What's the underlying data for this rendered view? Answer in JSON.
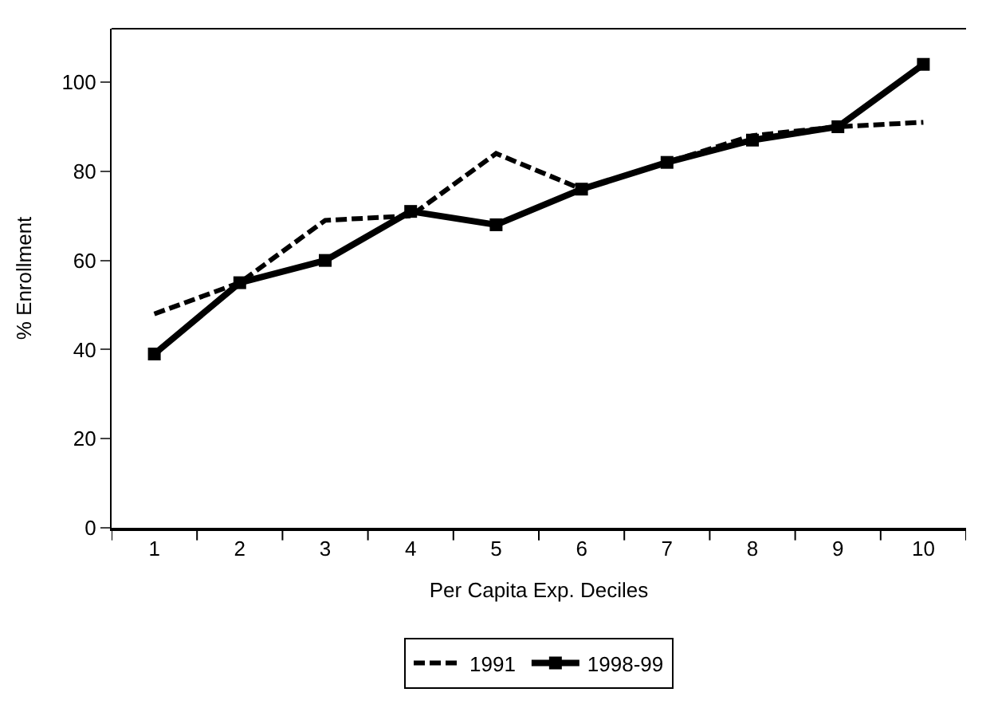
{
  "chart_data": {
    "type": "line",
    "xlabel": "Per Capita Exp. Deciles",
    "ylabel": "% Enrollment",
    "categories": [
      "1",
      "2",
      "3",
      "4",
      "5",
      "6",
      "7",
      "8",
      "9",
      "10"
    ],
    "series": [
      {
        "name": "1991",
        "color": "#000000",
        "line_style": "dashed",
        "marker": "none",
        "values": [
          48,
          55,
          69,
          70,
          84,
          76,
          82,
          88,
          90,
          91
        ]
      },
      {
        "name": "1998-99",
        "color": "#000000",
        "line_style": "solid",
        "marker": "square",
        "values": [
          39,
          55,
          60,
          71,
          68,
          76,
          82,
          87,
          90,
          104
        ]
      }
    ],
    "ylim": [
      0,
      112
    ],
    "yticks": [
      0,
      20,
      40,
      60,
      80,
      100
    ],
    "grid": false,
    "legend": "bottom"
  }
}
